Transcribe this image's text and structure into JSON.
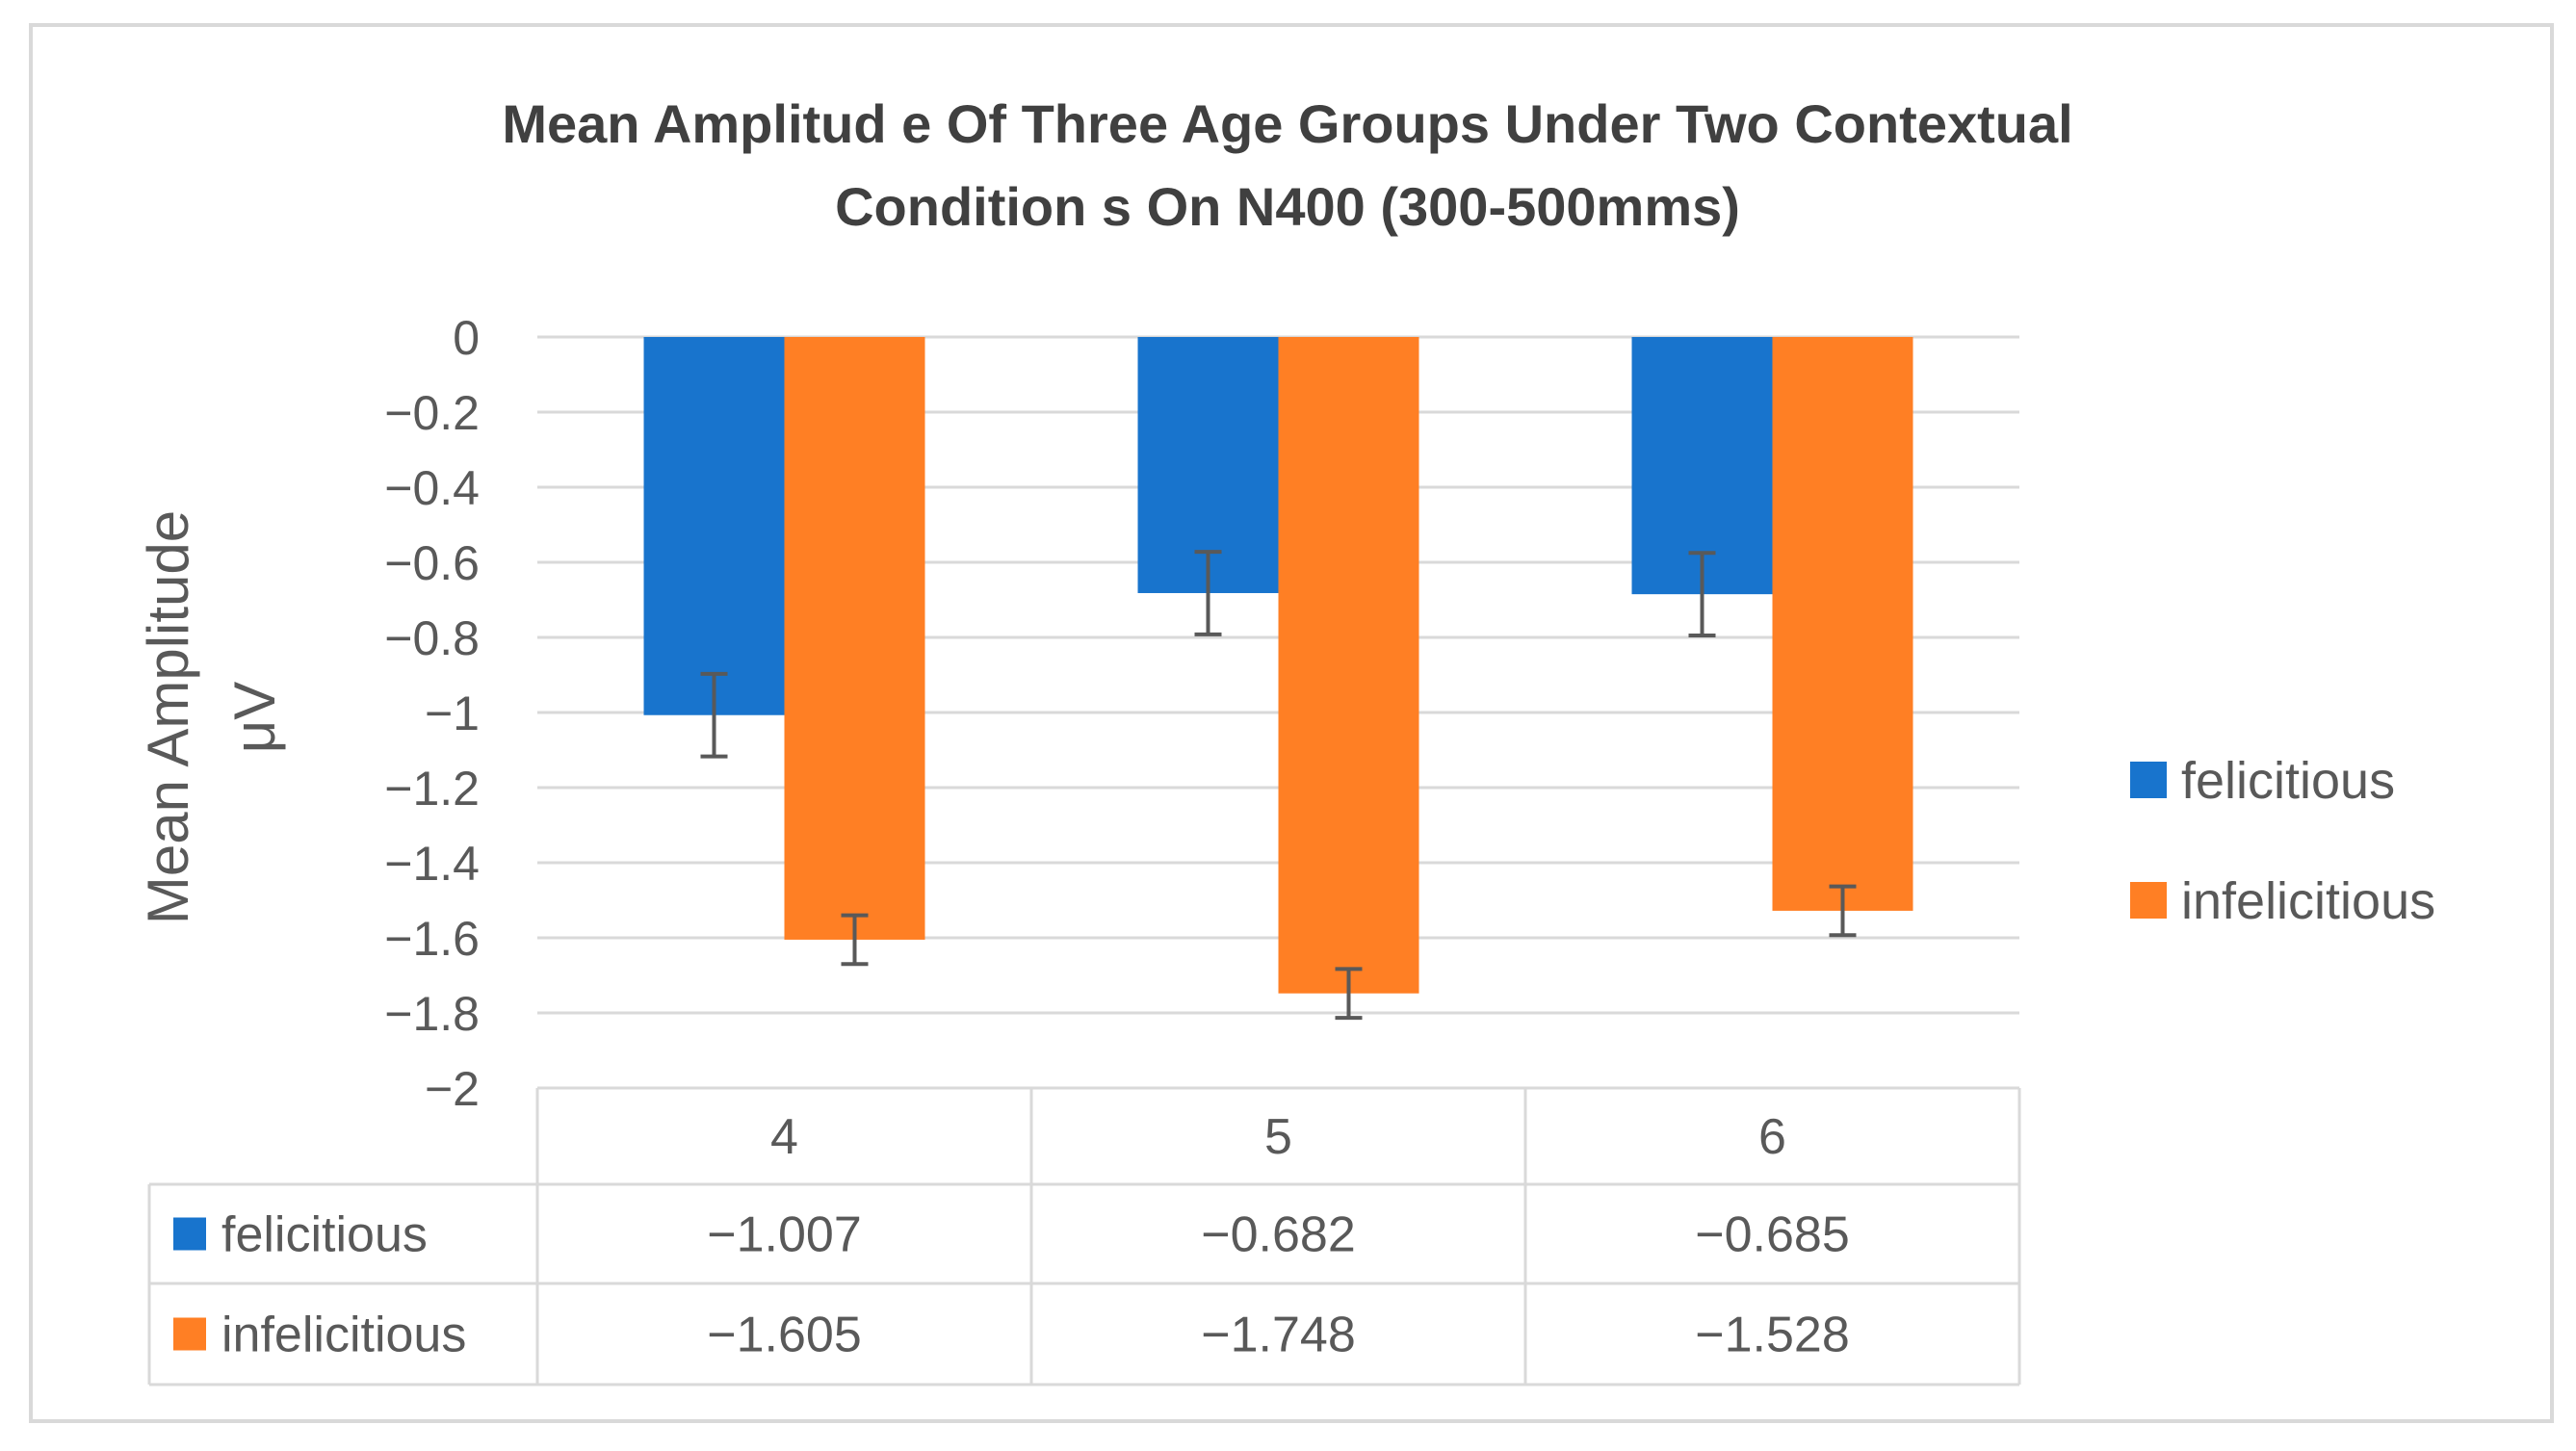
{
  "chart_data": {
    "type": "bar",
    "title_lines": [
      "Mean Amplitud e Of Three Age Groups  Under Two  Contextual",
      "Condition s On N400 (300-500mms)"
    ],
    "ylabel_lines": [
      "Mean Amplitude",
      "μV"
    ],
    "xlabel": "",
    "categories": [
      "4",
      "5",
      "6"
    ],
    "series": [
      {
        "name": "felicitious",
        "color": "#1874CD",
        "values": [
          -1.007,
          -0.682,
          -0.685
        ],
        "labels": [
          "−1.007",
          "−0.682",
          "−0.685"
        ],
        "error": [
          0.11,
          0.11,
          0.11
        ]
      },
      {
        "name": "infelicitious",
        "color": "#FF7F24",
        "values": [
          -1.605,
          -1.748,
          -1.528
        ],
        "labels": [
          "−1.605",
          "−1.748",
          "−1.528"
        ],
        "error": [
          0.065,
          0.065,
          0.065
        ]
      }
    ],
    "ylim": [
      -2,
      0
    ],
    "ytick_values": [
      0,
      -0.2,
      -0.4,
      -0.6,
      -0.8,
      -1,
      -1.2,
      -1.4,
      -1.6,
      -1.8,
      -2
    ],
    "ytick_labels": [
      "0",
      "−0.2",
      "−0.4",
      "−0.6",
      "−0.8",
      "−1",
      "−1.2",
      "−1.4",
      "−1.6",
      "−1.8",
      "−2"
    ],
    "grid": true,
    "legend_position": "right",
    "data_table": true,
    "colors": {
      "grid": "#D9D9D9",
      "text": "#595959",
      "title": "#404040",
      "frame": "#D9D9D9",
      "errorbar": "#595959"
    }
  }
}
